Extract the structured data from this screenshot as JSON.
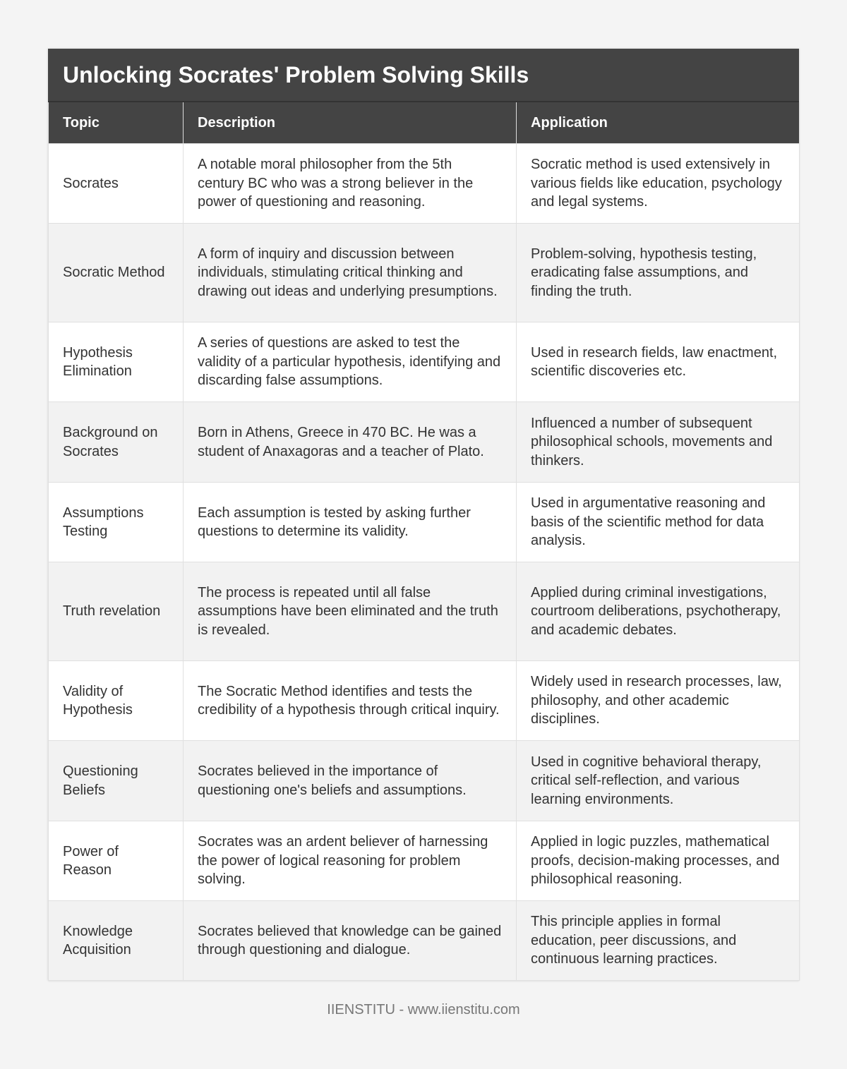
{
  "title": "Unlocking Socrates' Problem Solving Skills",
  "headers": [
    "Topic",
    "Description",
    "Application"
  ],
  "rows": [
    {
      "topic": "Socrates",
      "description": "A notable moral philosopher from the 5th century BC who was a strong believer in the power of questioning and reasoning.",
      "application": "Socratic method is used extensively in various fields like education, psychology and legal systems."
    },
    {
      "topic": "Socratic Method",
      "description": "A form of inquiry and discussion between individuals, stimulating critical thinking and drawing out ideas and underlying presumptions.",
      "application": "Problem-solving, hypothesis testing, eradicating false assumptions, and finding the truth."
    },
    {
      "topic": "Hypothesis Elimination",
      "description": "A series of questions are asked to test the validity of a particular hypothesis, identifying and discarding false assumptions.",
      "application": "Used in research fields, law enactment, scientific discoveries etc."
    },
    {
      "topic": "Background on Socrates",
      "description": "Born in Athens, Greece in 470 BC. He was a student of Anaxagoras and a teacher of Plato.",
      "application": "Influenced a number of subsequent philosophical schools, movements and thinkers."
    },
    {
      "topic": "Assumptions Testing",
      "description": "Each assumption is tested by asking further questions to determine its validity.",
      "application": "Used in argumentative reasoning and basis of the scientific method for data analysis."
    },
    {
      "topic": "Truth revelation",
      "description": "The process is repeated until all false assumptions have been eliminated and the truth is revealed.",
      "application": "Applied during criminal investigations, courtroom deliberations, psychotherapy, and academic debates."
    },
    {
      "topic": "Validity of Hypothesis",
      "description": "The Socratic Method identifies and tests the credibility of a hypothesis through critical inquiry.",
      "application": "Widely used in research processes, law, philosophy, and other academic disciplines."
    },
    {
      "topic": "Questioning Beliefs",
      "description": "Socrates believed in the importance of questioning one's beliefs and assumptions.",
      "application": "Used in cognitive behavioral therapy, critical self-reflection, and various learning environments."
    },
    {
      "topic": "Power of Reason",
      "description": "Socrates was an ardent believer of harnessing the power of logical reasoning for problem solving.",
      "application": "Applied in logic puzzles, mathematical proofs, decision-making processes, and philosophical reasoning."
    },
    {
      "topic": "Knowledge Acquisition",
      "description": "Socrates believed that knowledge can be gained through questioning and dialogue.",
      "application": "This principle applies in formal education, peer discussions, and continuous learning practices."
    }
  ],
  "footer": "IIENSTITU - www.iienstitu.com"
}
